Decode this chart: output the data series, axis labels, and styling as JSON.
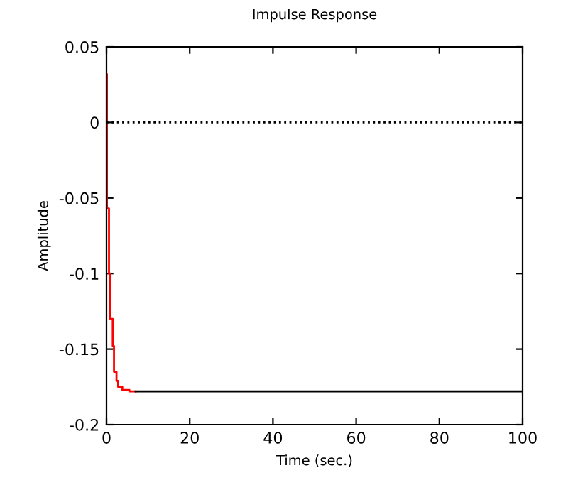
{
  "chart_data": {
    "type": "step",
    "title": "Impulse Response",
    "xlabel": "Time (sec.)",
    "ylabel": "Amplitude",
    "series": [
      {
        "color": "#ff0000",
        "x": [
          0,
          0.1,
          0.6,
          0.9,
          1.5,
          1.8,
          2.4,
          2.8,
          3.8,
          5.5,
          7
        ],
        "values": [
          0.032,
          -0.057,
          -0.1,
          -0.13,
          -0.148,
          -0.165,
          -0.171,
          -0.175,
          -0.177,
          -0.178,
          -0.178
        ]
      },
      {
        "color": "#000000",
        "x": [
          7,
          100
        ],
        "values": [
          -0.178,
          -0.178
        ]
      }
    ],
    "ref_lines": [
      {
        "axis": "y",
        "value": 0,
        "color": "#000000",
        "line_style": "dotted"
      }
    ],
    "xlim": [
      0,
      100
    ],
    "ylim": [
      -0.2,
      0.05
    ],
    "xticks": [
      0,
      20,
      40,
      60,
      80,
      100
    ],
    "yticks": [
      -0.2,
      -0.15,
      -0.1,
      -0.05,
      0,
      0.05
    ],
    "grid": false,
    "legend": false
  }
}
